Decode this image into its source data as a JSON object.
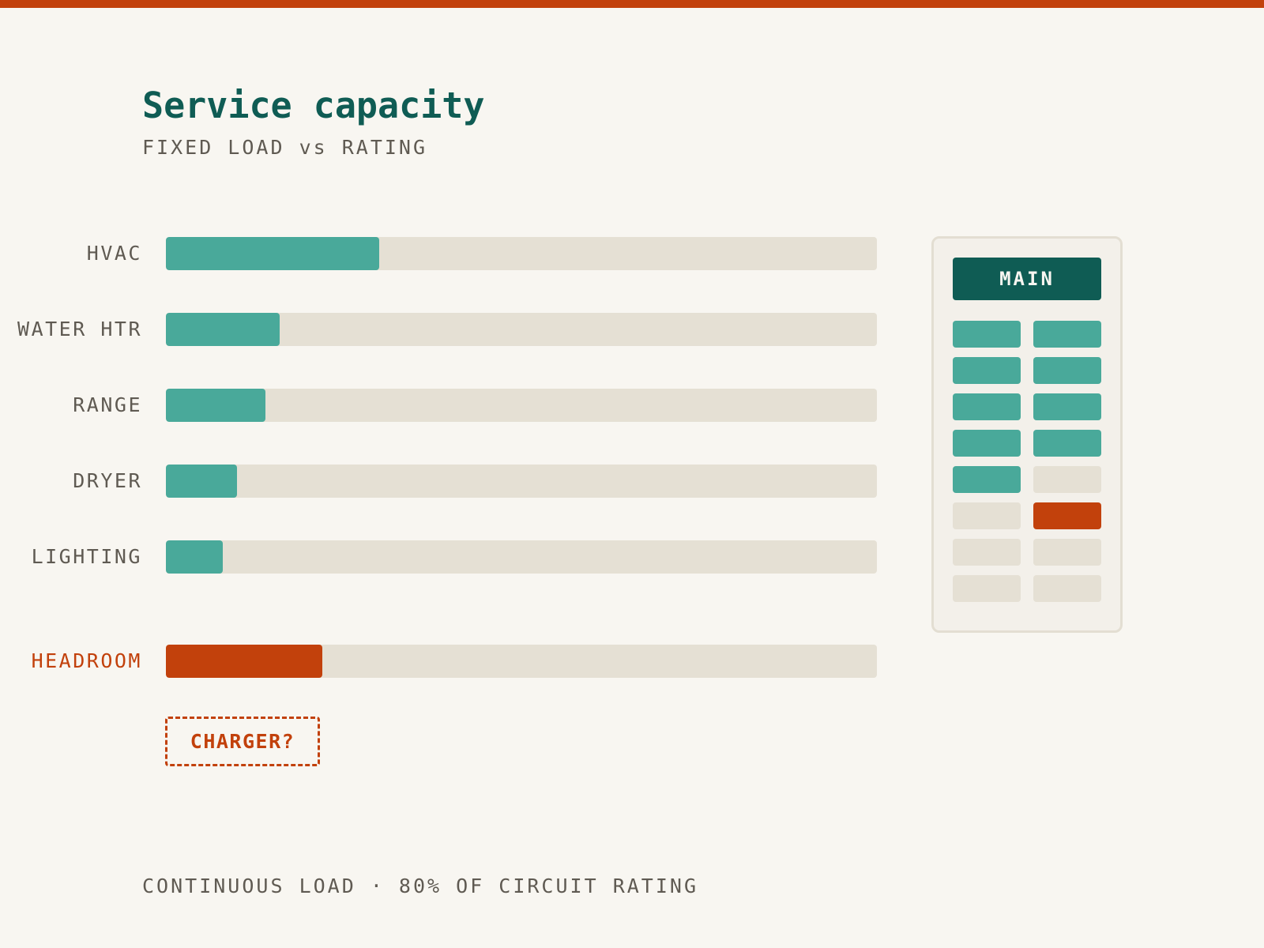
{
  "title": "Service capacity",
  "subtitle": "FIXED LOAD vs RATING",
  "chart_data": {
    "type": "bar",
    "orientation": "horizontal",
    "categories": [
      "HVAC",
      "WATER HTR",
      "RANGE",
      "DRYER",
      "LIGHTING",
      "HEADROOM"
    ],
    "values": [
      30,
      16,
      14,
      10,
      8,
      22
    ],
    "value_unit": "% of service rating (estimated from bar fill)",
    "highlighted_category": "HEADROOM",
    "xlim": [
      0,
      100
    ],
    "grid": false,
    "colors": {
      "load": "#49a99a",
      "headroom": "#c2410c",
      "track": "#e5e0d4"
    }
  },
  "callout": {
    "label": "CHARGER?"
  },
  "panel": {
    "main_label": "MAIN",
    "breakers": [
      [
        "used",
        "used"
      ],
      [
        "used",
        "used"
      ],
      [
        "used",
        "used"
      ],
      [
        "used",
        "used"
      ],
      [
        "used",
        "empty"
      ],
      [
        "empty",
        "new"
      ],
      [
        "empty",
        "empty"
      ],
      [
        "empty",
        "empty"
      ]
    ],
    "colors": {
      "main": "#0f5c54",
      "used": "#49a99a",
      "new": "#c2410c",
      "empty": "#e5e0d4"
    }
  },
  "footnote": "CONTINUOUS LOAD · 80% OF CIRCUIT RATING",
  "accent_color": "#c2410c"
}
